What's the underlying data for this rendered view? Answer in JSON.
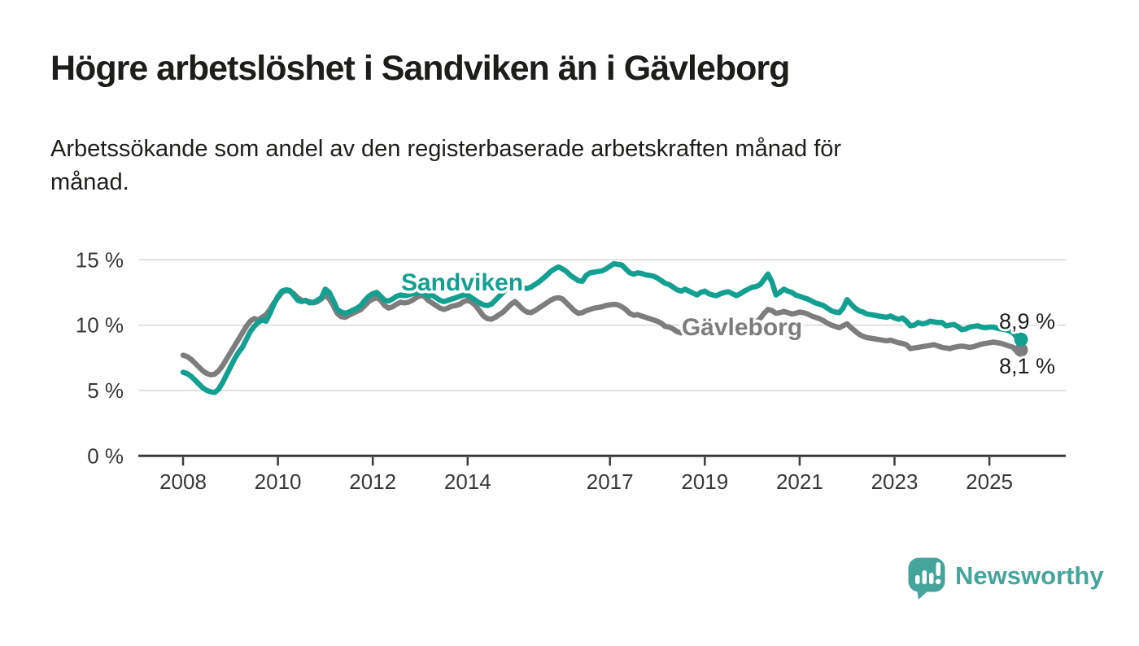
{
  "header": {
    "title": "Högre arbetslöshet i Sandviken än i Gävleborg",
    "subtitle": "Arbetssökande som andel av den registerbaserade arbetskraften månad för månad."
  },
  "branding": {
    "logo_text": "Newsworthy",
    "logo_color": "#45a59c"
  },
  "colors": {
    "sandviken_teal": "#14a090",
    "gavleborg_gray": "#7d7d7d",
    "grid": "#d9d9d9",
    "axis": "#3b3b3a",
    "text": "#1d1d1b"
  },
  "chart_data": {
    "type": "line",
    "unit": "%",
    "grid": "horizontal-only",
    "legend_position": "inline-labels-on-lines",
    "x_start_year": 2008,
    "points_per_year": 12,
    "x_axis": {
      "ticks": [
        {
          "year": 2008,
          "label": "2008"
        },
        {
          "year": 2010,
          "label": "2010"
        },
        {
          "year": 2012,
          "label": "2012"
        },
        {
          "year": 2014,
          "label": "2014"
        },
        {
          "year": 2017,
          "label": "2017"
        },
        {
          "year": 2019,
          "label": "2019"
        },
        {
          "year": 2021,
          "label": "2021"
        },
        {
          "year": 2023,
          "label": "2023"
        },
        {
          "year": 2025,
          "label": "2025"
        }
      ]
    },
    "y_axis": {
      "range": [
        0,
        16.3
      ],
      "ticks": [
        {
          "value": 0,
          "label": "0 %"
        },
        {
          "value": 5,
          "label": "5 %"
        },
        {
          "value": 10,
          "label": "10 %"
        },
        {
          "value": 15,
          "label": "15 %"
        }
      ]
    },
    "series": [
      {
        "key": "sandviken",
        "name": "Sandviken",
        "color": "#14a090",
        "end_value": 8.9,
        "end_label": "8,9 %",
        "values": [
          6.4,
          6.3,
          6.1,
          5.8,
          5.5,
          5.2,
          5.0,
          4.9,
          4.85,
          5.1,
          5.6,
          6.2,
          6.8,
          7.4,
          7.9,
          8.3,
          8.9,
          9.5,
          9.9,
          10.2,
          10.4,
          10.3,
          10.9,
          11.6,
          12.2,
          12.6,
          12.7,
          12.65,
          12.3,
          11.9,
          11.8,
          11.9,
          11.7,
          11.75,
          11.9,
          12.1,
          12.75,
          12.5,
          11.9,
          11.2,
          11.0,
          10.9,
          11.0,
          11.15,
          11.3,
          11.5,
          11.9,
          12.2,
          12.4,
          12.5,
          12.2,
          11.9,
          11.85,
          12.0,
          12.2,
          12.3,
          12.25,
          12.3,
          12.4,
          12.45,
          12.5,
          12.4,
          12.2,
          12.3,
          12.1,
          11.9,
          11.8,
          11.9,
          12.0,
          12.1,
          12.2,
          12.3,
          12.3,
          12.1,
          11.9,
          11.7,
          11.55,
          11.5,
          11.6,
          11.9,
          12.2,
          12.5,
          12.8,
          13.0,
          13.2,
          13.0,
          12.85,
          12.8,
          12.9,
          13.1,
          13.3,
          13.55,
          13.8,
          14.1,
          14.3,
          14.45,
          14.3,
          14.1,
          13.8,
          13.6,
          13.4,
          13.35,
          13.8,
          14.0,
          14.05,
          14.1,
          14.15,
          14.3,
          14.5,
          14.7,
          14.65,
          14.6,
          14.3,
          14.0,
          13.9,
          14.0,
          13.95,
          13.85,
          13.8,
          13.75,
          13.6,
          13.4,
          13.2,
          13.1,
          12.9,
          12.7,
          12.6,
          12.75,
          12.6,
          12.45,
          12.3,
          12.5,
          12.6,
          12.4,
          12.3,
          12.25,
          12.4,
          12.5,
          12.55,
          12.4,
          12.25,
          12.4,
          12.6,
          12.75,
          12.9,
          12.95,
          13.1,
          13.5,
          13.9,
          13.3,
          12.3,
          12.5,
          12.75,
          12.6,
          12.5,
          12.3,
          12.2,
          12.1,
          12.0,
          11.85,
          11.7,
          11.6,
          11.5,
          11.3,
          11.1,
          11.0,
          10.95,
          11.3,
          11.95,
          11.6,
          11.3,
          11.1,
          11.0,
          10.85,
          10.8,
          10.75,
          10.7,
          10.65,
          10.6,
          10.7,
          10.55,
          10.45,
          10.55,
          10.3,
          9.95,
          10.0,
          10.2,
          10.1,
          10.15,
          10.3,
          10.25,
          10.2,
          10.2,
          9.95,
          10.0,
          10.05,
          9.9,
          9.65,
          9.7,
          9.85,
          9.9,
          9.95,
          9.85,
          9.8,
          9.85,
          9.85,
          9.75,
          9.7,
          9.65,
          9.55,
          9.4,
          9.05,
          8.9
        ]
      },
      {
        "key": "gavleborg",
        "name": "Gävleborg",
        "color": "#7d7d7d",
        "end_value": 8.1,
        "end_label": "8,1 %",
        "values": [
          7.7,
          7.6,
          7.4,
          7.1,
          6.8,
          6.5,
          6.3,
          6.2,
          6.25,
          6.5,
          6.9,
          7.4,
          7.9,
          8.4,
          8.9,
          9.4,
          9.9,
          10.3,
          10.5,
          10.4,
          10.6,
          10.8,
          11.2,
          11.7,
          12.1,
          12.5,
          12.65,
          12.6,
          12.4,
          12.1,
          11.9,
          11.85,
          11.8,
          11.7,
          11.8,
          12.0,
          12.3,
          12.0,
          11.5,
          10.9,
          10.65,
          10.6,
          10.75,
          10.9,
          11.05,
          11.2,
          11.5,
          11.8,
          12.0,
          12.1,
          11.9,
          11.5,
          11.3,
          11.4,
          11.6,
          11.75,
          11.7,
          11.75,
          11.9,
          12.1,
          12.25,
          12.2,
          11.9,
          11.7,
          11.5,
          11.3,
          11.2,
          11.3,
          11.45,
          11.5,
          11.6,
          11.8,
          11.9,
          11.75,
          11.5,
          11.1,
          10.7,
          10.5,
          10.45,
          10.6,
          10.8,
          11.0,
          11.3,
          11.6,
          11.8,
          11.5,
          11.2,
          11.0,
          10.95,
          11.1,
          11.3,
          11.5,
          11.7,
          11.9,
          12.05,
          12.1,
          12.0,
          11.7,
          11.4,
          11.1,
          10.9,
          10.95,
          11.1,
          11.2,
          11.3,
          11.35,
          11.4,
          11.5,
          11.55,
          11.6,
          11.55,
          11.4,
          11.2,
          10.9,
          10.75,
          10.8,
          10.7,
          10.6,
          10.5,
          10.4,
          10.3,
          10.15,
          9.9,
          9.85,
          9.7,
          9.5,
          9.4,
          9.55,
          9.5,
          9.45,
          9.4,
          9.6,
          9.7,
          9.6,
          9.5,
          9.45,
          9.5,
          9.55,
          9.5,
          9.45,
          9.4,
          9.5,
          9.65,
          9.8,
          10.0,
          10.2,
          10.5,
          10.9,
          11.2,
          11.1,
          10.9,
          10.95,
          11.05,
          10.95,
          10.85,
          10.9,
          11.0,
          10.95,
          10.85,
          10.7,
          10.6,
          10.5,
          10.35,
          10.15,
          10.0,
          9.9,
          9.8,
          9.95,
          10.1,
          9.8,
          9.55,
          9.3,
          9.15,
          9.05,
          9.0,
          8.95,
          8.9,
          8.85,
          8.8,
          8.85,
          8.75,
          8.65,
          8.6,
          8.5,
          8.2,
          8.25,
          8.3,
          8.35,
          8.4,
          8.45,
          8.5,
          8.4,
          8.3,
          8.25,
          8.2,
          8.3,
          8.35,
          8.4,
          8.35,
          8.3,
          8.35,
          8.45,
          8.55,
          8.6,
          8.65,
          8.7,
          8.65,
          8.6,
          8.5,
          8.4,
          8.3,
          7.95,
          8.1
        ]
      }
    ]
  }
}
